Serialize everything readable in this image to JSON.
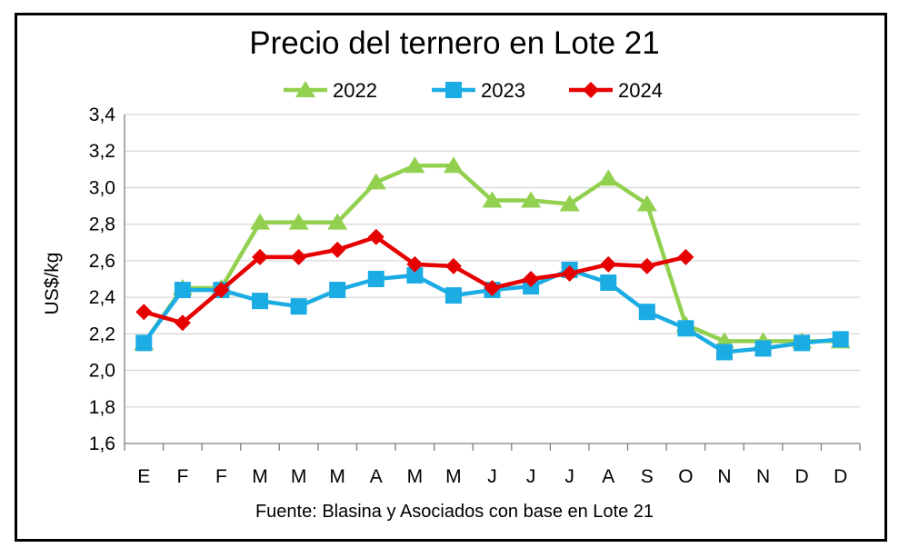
{
  "chart_data": {
    "type": "line",
    "title": "Precio del ternero en Lote 21",
    "ylabel": "US$/kg",
    "xlabel": "",
    "source": "Fuente: Blasina y Asociados con base en Lote 21",
    "categories": [
      "E",
      "F",
      "F",
      "M",
      "M",
      "M",
      "A",
      "M",
      "M",
      "J",
      "J",
      "J",
      "A",
      "S",
      "O",
      "N",
      "N",
      "D",
      "D"
    ],
    "yticks": [
      "1,6",
      "1,8",
      "2,0",
      "2,2",
      "2,4",
      "2,6",
      "2,8",
      "3,0",
      "3,2",
      "3,4"
    ],
    "ylim": [
      1.6,
      3.4
    ],
    "grid": true,
    "legend_position": "top",
    "series": [
      {
        "name": "2022",
        "color": "#92d050",
        "marker": "triangle",
        "values": [
          2.15,
          2.45,
          2.45,
          2.81,
          2.81,
          2.81,
          3.03,
          3.12,
          3.12,
          2.93,
          2.93,
          2.91,
          3.05,
          2.91,
          2.25,
          2.16,
          2.16,
          2.16,
          2.16
        ]
      },
      {
        "name": "2023",
        "color": "#1cace4",
        "marker": "square",
        "values": [
          2.15,
          2.44,
          2.44,
          2.38,
          2.35,
          2.44,
          2.5,
          2.52,
          2.41,
          2.44,
          2.46,
          2.55,
          2.48,
          2.32,
          2.23,
          2.1,
          2.12,
          2.15,
          2.17
        ]
      },
      {
        "name": "2024",
        "color": "#e60000",
        "marker": "diamond",
        "values": [
          2.32,
          2.26,
          2.44,
          2.62,
          2.62,
          2.66,
          2.73,
          2.58,
          2.57,
          2.45,
          2.5,
          2.53,
          2.58,
          2.57,
          2.62,
          null,
          null,
          null,
          null
        ]
      }
    ]
  }
}
